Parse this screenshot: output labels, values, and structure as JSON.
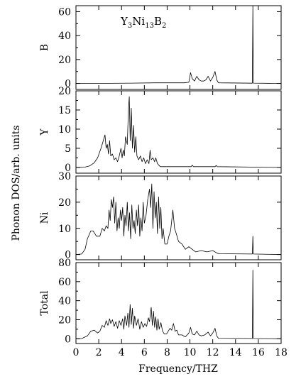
{
  "chart_data": {
    "type": "line",
    "title": "Y3Ni13B2",
    "title_parts": {
      "y": "Y",
      "y_sub": "3",
      "ni": "Ni",
      "ni_sub": "13",
      "b": "B",
      "b_sub": "2"
    },
    "ylabel": "Phonon DOS/arb. units",
    "xlabel": "Frequency/THZ",
    "xlim": [
      0,
      18
    ],
    "xticks": [
      0,
      2,
      4,
      6,
      8,
      10,
      12,
      14,
      16,
      18
    ],
    "grid": false,
    "panels": [
      {
        "name": "B",
        "ylim": [
          -5,
          65
        ],
        "yticks": [
          0,
          20,
          40,
          60
        ],
        "points": [
          [
            0,
            0
          ],
          [
            3,
            0.1
          ],
          [
            5,
            0.3
          ],
          [
            7,
            0.5
          ],
          [
            9.5,
            0.5
          ],
          [
            9.9,
            1
          ],
          [
            10.05,
            9
          ],
          [
            10.2,
            4
          ],
          [
            10.4,
            2
          ],
          [
            10.6,
            6
          ],
          [
            10.8,
            3
          ],
          [
            11.0,
            2
          ],
          [
            11.2,
            2
          ],
          [
            11.4,
            3
          ],
          [
            11.6,
            6
          ],
          [
            11.8,
            2
          ],
          [
            12.0,
            5
          ],
          [
            12.2,
            10
          ],
          [
            12.35,
            3
          ],
          [
            12.5,
            0.5
          ],
          [
            15.48,
            0.2
          ],
          [
            15.52,
            65
          ],
          [
            15.56,
            0.3
          ],
          [
            18,
            0
          ]
        ]
      },
      {
        "name": "Y",
        "ylim": [
          -1.5,
          20
        ],
        "yticks": [
          0,
          5,
          10,
          15,
          20
        ],
        "points": [
          [
            0,
            0
          ],
          [
            0.8,
            0.1
          ],
          [
            1.2,
            0.4
          ],
          [
            1.6,
            1.2
          ],
          [
            1.9,
            2.5
          ],
          [
            2.2,
            5
          ],
          [
            2.4,
            7
          ],
          [
            2.55,
            8.5
          ],
          [
            2.65,
            5
          ],
          [
            2.75,
            6
          ],
          [
            2.85,
            3.5
          ],
          [
            2.95,
            7
          ],
          [
            3.05,
            3
          ],
          [
            3.2,
            3.5
          ],
          [
            3.35,
            2
          ],
          [
            3.5,
            2.5
          ],
          [
            3.65,
            1.5
          ],
          [
            3.8,
            3
          ],
          [
            3.95,
            5
          ],
          [
            4.05,
            2.5
          ],
          [
            4.15,
            4.5
          ],
          [
            4.25,
            3
          ],
          [
            4.35,
            8
          ],
          [
            4.5,
            6
          ],
          [
            4.6,
            15
          ],
          [
            4.68,
            18.5
          ],
          [
            4.76,
            7
          ],
          [
            4.85,
            15.5
          ],
          [
            4.95,
            5
          ],
          [
            5.05,
            11
          ],
          [
            5.15,
            4
          ],
          [
            5.25,
            8
          ],
          [
            5.35,
            3
          ],
          [
            5.5,
            2
          ],
          [
            5.65,
            3
          ],
          [
            5.8,
            1.5
          ],
          [
            5.95,
            2.5
          ],
          [
            6.1,
            1
          ],
          [
            6.25,
            2
          ],
          [
            6.4,
            1
          ],
          [
            6.5,
            4.5
          ],
          [
            6.6,
            2
          ],
          [
            6.75,
            2.5
          ],
          [
            6.9,
            1.5
          ],
          [
            7.0,
            2.5
          ],
          [
            7.15,
            1
          ],
          [
            7.3,
            0.5
          ],
          [
            7.4,
            0.2
          ],
          [
            10.1,
            0.2
          ],
          [
            10.2,
            0.6
          ],
          [
            10.3,
            0.2
          ],
          [
            12.2,
            0.2
          ],
          [
            12.3,
            0.5
          ],
          [
            12.4,
            0.2
          ],
          [
            18,
            0
          ]
        ]
      },
      {
        "name": "Ni",
        "ylim": [
          -2,
          30
        ],
        "yticks": [
          0,
          10,
          20,
          30
        ],
        "points": [
          [
            0,
            0
          ],
          [
            0.5,
            0.2
          ],
          [
            0.8,
            2
          ],
          [
            1.0,
            6
          ],
          [
            1.3,
            9
          ],
          [
            1.5,
            9
          ],
          [
            1.8,
            7
          ],
          [
            2.1,
            7
          ],
          [
            2.3,
            10
          ],
          [
            2.5,
            9
          ],
          [
            2.65,
            11
          ],
          [
            2.8,
            10
          ],
          [
            2.9,
            17
          ],
          [
            3.0,
            13
          ],
          [
            3.1,
            21
          ],
          [
            3.2,
            18
          ],
          [
            3.3,
            22
          ],
          [
            3.4,
            12
          ],
          [
            3.5,
            20
          ],
          [
            3.6,
            9
          ],
          [
            3.7,
            14
          ],
          [
            3.8,
            10
          ],
          [
            3.9,
            17
          ],
          [
            4.0,
            13
          ],
          [
            4.1,
            18
          ],
          [
            4.2,
            7
          ],
          [
            4.3,
            15
          ],
          [
            4.4,
            11
          ],
          [
            4.5,
            20
          ],
          [
            4.6,
            9
          ],
          [
            4.7,
            16
          ],
          [
            4.8,
            6
          ],
          [
            4.9,
            19
          ],
          [
            5.0,
            10
          ],
          [
            5.1,
            13
          ],
          [
            5.2,
            8
          ],
          [
            5.3,
            17
          ],
          [
            5.4,
            11
          ],
          [
            5.5,
            19
          ],
          [
            5.6,
            7
          ],
          [
            5.7,
            14
          ],
          [
            5.8,
            9
          ],
          [
            5.9,
            20
          ],
          [
            6.0,
            12
          ],
          [
            6.15,
            15
          ],
          [
            6.3,
            21
          ],
          [
            6.45,
            25
          ],
          [
            6.55,
            18
          ],
          [
            6.65,
            27
          ],
          [
            6.75,
            10
          ],
          [
            6.85,
            24
          ],
          [
            6.95,
            14
          ],
          [
            7.05,
            20
          ],
          [
            7.15,
            8
          ],
          [
            7.25,
            22
          ],
          [
            7.35,
            10
          ],
          [
            7.45,
            18
          ],
          [
            7.55,
            6
          ],
          [
            7.65,
            10
          ],
          [
            7.8,
            4
          ],
          [
            8.0,
            4
          ],
          [
            8.15,
            7
          ],
          [
            8.3,
            9
          ],
          [
            8.5,
            17
          ],
          [
            8.65,
            10
          ],
          [
            8.8,
            8
          ],
          [
            9.0,
            5
          ],
          [
            9.3,
            4
          ],
          [
            9.6,
            2
          ],
          [
            9.9,
            3
          ],
          [
            10.2,
            2
          ],
          [
            10.5,
            1
          ],
          [
            11.0,
            1.5
          ],
          [
            11.5,
            1
          ],
          [
            12.0,
            1.5
          ],
          [
            12.4,
            0.5
          ],
          [
            12.6,
            0.3
          ],
          [
            15.48,
            0.2
          ],
          [
            15.52,
            7
          ],
          [
            15.56,
            0.2
          ],
          [
            18,
            0
          ]
        ]
      },
      {
        "name": "Total",
        "ylim": [
          -5,
          80
        ],
        "yticks": [
          0,
          20,
          40,
          60,
          80
        ],
        "points": [
          [
            0,
            0
          ],
          [
            0.5,
            0.2
          ],
          [
            1.0,
            3
          ],
          [
            1.3,
            8
          ],
          [
            1.6,
            9
          ],
          [
            1.9,
            6
          ],
          [
            2.1,
            8
          ],
          [
            2.3,
            14
          ],
          [
            2.5,
            12
          ],
          [
            2.65,
            19
          ],
          [
            2.8,
            14
          ],
          [
            2.95,
            21
          ],
          [
            3.05,
            16
          ],
          [
            3.2,
            20
          ],
          [
            3.35,
            13
          ],
          [
            3.5,
            18
          ],
          [
            3.65,
            11
          ],
          [
            3.8,
            19
          ],
          [
            3.95,
            14
          ],
          [
            4.1,
            21
          ],
          [
            4.2,
            10
          ],
          [
            4.3,
            24
          ],
          [
            4.45,
            14
          ],
          [
            4.55,
            27
          ],
          [
            4.65,
            12
          ],
          [
            4.75,
            36
          ],
          [
            4.85,
            15
          ],
          [
            4.95,
            32
          ],
          [
            5.05,
            11
          ],
          [
            5.15,
            24
          ],
          [
            5.3,
            14
          ],
          [
            5.45,
            21
          ],
          [
            5.6,
            10
          ],
          [
            5.75,
            18
          ],
          [
            5.9,
            12
          ],
          [
            6.05,
            16
          ],
          [
            6.2,
            13
          ],
          [
            6.35,
            22
          ],
          [
            6.45,
            18
          ],
          [
            6.6,
            33
          ],
          [
            6.7,
            14
          ],
          [
            6.8,
            29
          ],
          [
            6.9,
            12
          ],
          [
            7.0,
            23
          ],
          [
            7.1,
            9
          ],
          [
            7.2,
            21
          ],
          [
            7.3,
            10
          ],
          [
            7.45,
            17
          ],
          [
            7.6,
            8
          ],
          [
            7.75,
            5
          ],
          [
            7.95,
            5
          ],
          [
            8.1,
            8
          ],
          [
            8.25,
            11
          ],
          [
            8.4,
            9
          ],
          [
            8.55,
            16
          ],
          [
            8.7,
            8
          ],
          [
            8.85,
            9
          ],
          [
            9.0,
            4
          ],
          [
            9.3,
            4
          ],
          [
            9.6,
            2
          ],
          [
            9.9,
            6
          ],
          [
            10.05,
            12
          ],
          [
            10.2,
            5
          ],
          [
            10.4,
            4
          ],
          [
            10.6,
            8
          ],
          [
            10.8,
            4
          ],
          [
            11.0,
            3
          ],
          [
            11.3,
            4
          ],
          [
            11.6,
            7
          ],
          [
            11.8,
            3
          ],
          [
            12.0,
            6
          ],
          [
            12.2,
            11
          ],
          [
            12.35,
            3
          ],
          [
            12.5,
            0.5
          ],
          [
            15.48,
            0.3
          ],
          [
            15.52,
            72
          ],
          [
            15.56,
            0.3
          ],
          [
            18,
            0
          ]
        ]
      }
    ]
  }
}
